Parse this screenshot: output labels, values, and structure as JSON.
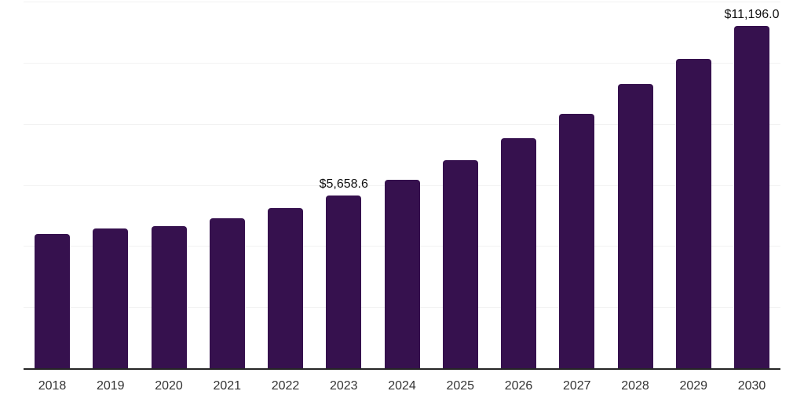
{
  "chart_data": {
    "type": "bar",
    "title": "",
    "xlabel": "",
    "ylabel": "",
    "categories": [
      "2018",
      "2019",
      "2020",
      "2021",
      "2022",
      "2023",
      "2024",
      "2025",
      "2026",
      "2027",
      "2028",
      "2029",
      "2030"
    ],
    "values": [
      4390,
      4580,
      4650,
      4920,
      5240,
      5658.6,
      6160,
      6800,
      7530,
      8320,
      9300,
      10130,
      11196.0
    ],
    "value_labels": [
      "",
      "",
      "",
      "",
      "",
      "$5,658.6",
      "",
      "",
      "",
      "",
      "",
      "",
      "$11,196.0"
    ],
    "ylim": [
      0,
      12000
    ],
    "gridline_step": 2000,
    "grid": true,
    "legend_visible": false,
    "y_axis_tick_labels_visible": false,
    "colors": {
      "bar": "#36114e",
      "gridline": "#f2f2f2",
      "axis_line": "#262626",
      "tick_label": "#333333",
      "value_label": "#111111",
      "background": "#ffffff"
    }
  }
}
